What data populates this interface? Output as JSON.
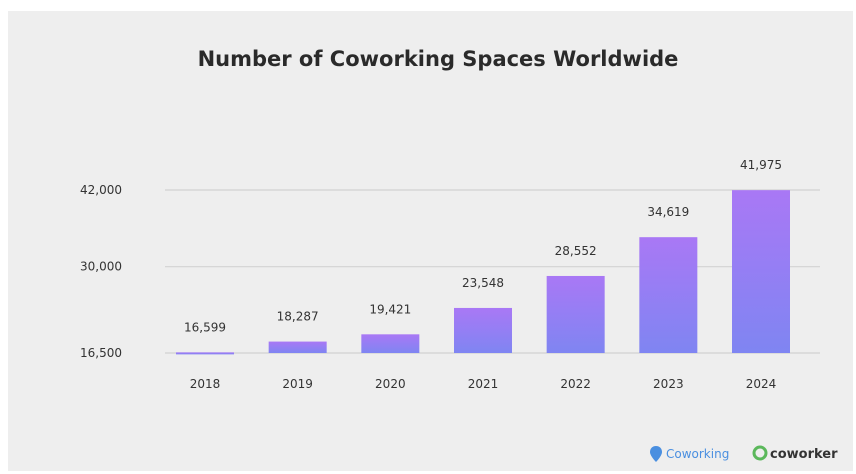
{
  "chart_data": {
    "type": "bar",
    "title": "Number of Coworking Spaces Worldwide",
    "xlabel": "",
    "ylabel": "",
    "categories": [
      "2018",
      "2019",
      "2020",
      "2021",
      "2022",
      "2023",
      "2024"
    ],
    "values": [
      16599,
      18287,
      19421,
      23548,
      28552,
      34619,
      41975
    ],
    "data_labels": [
      "16,599",
      "18,287",
      "19,421",
      "23,548",
      "28,552",
      "34,619",
      "41,975"
    ],
    "y_ticks": [
      16500,
      30000,
      42000
    ],
    "y_tick_labels": [
      "16,500",
      "30,000",
      "42,000"
    ],
    "ylim": [
      16500,
      42000
    ],
    "grid": true,
    "legend": "none",
    "colors": {
      "bar_top": "#a978f5",
      "bar_bottom": "#7f85f2",
      "grid": "#d2d2d2",
      "background": "#eeeeee"
    }
  },
  "branding": {
    "logo_left": "Coworking",
    "logo_right": "coworker",
    "colors": {
      "left": "#4a8fe0",
      "right_icon": "#5bb85b"
    }
  }
}
